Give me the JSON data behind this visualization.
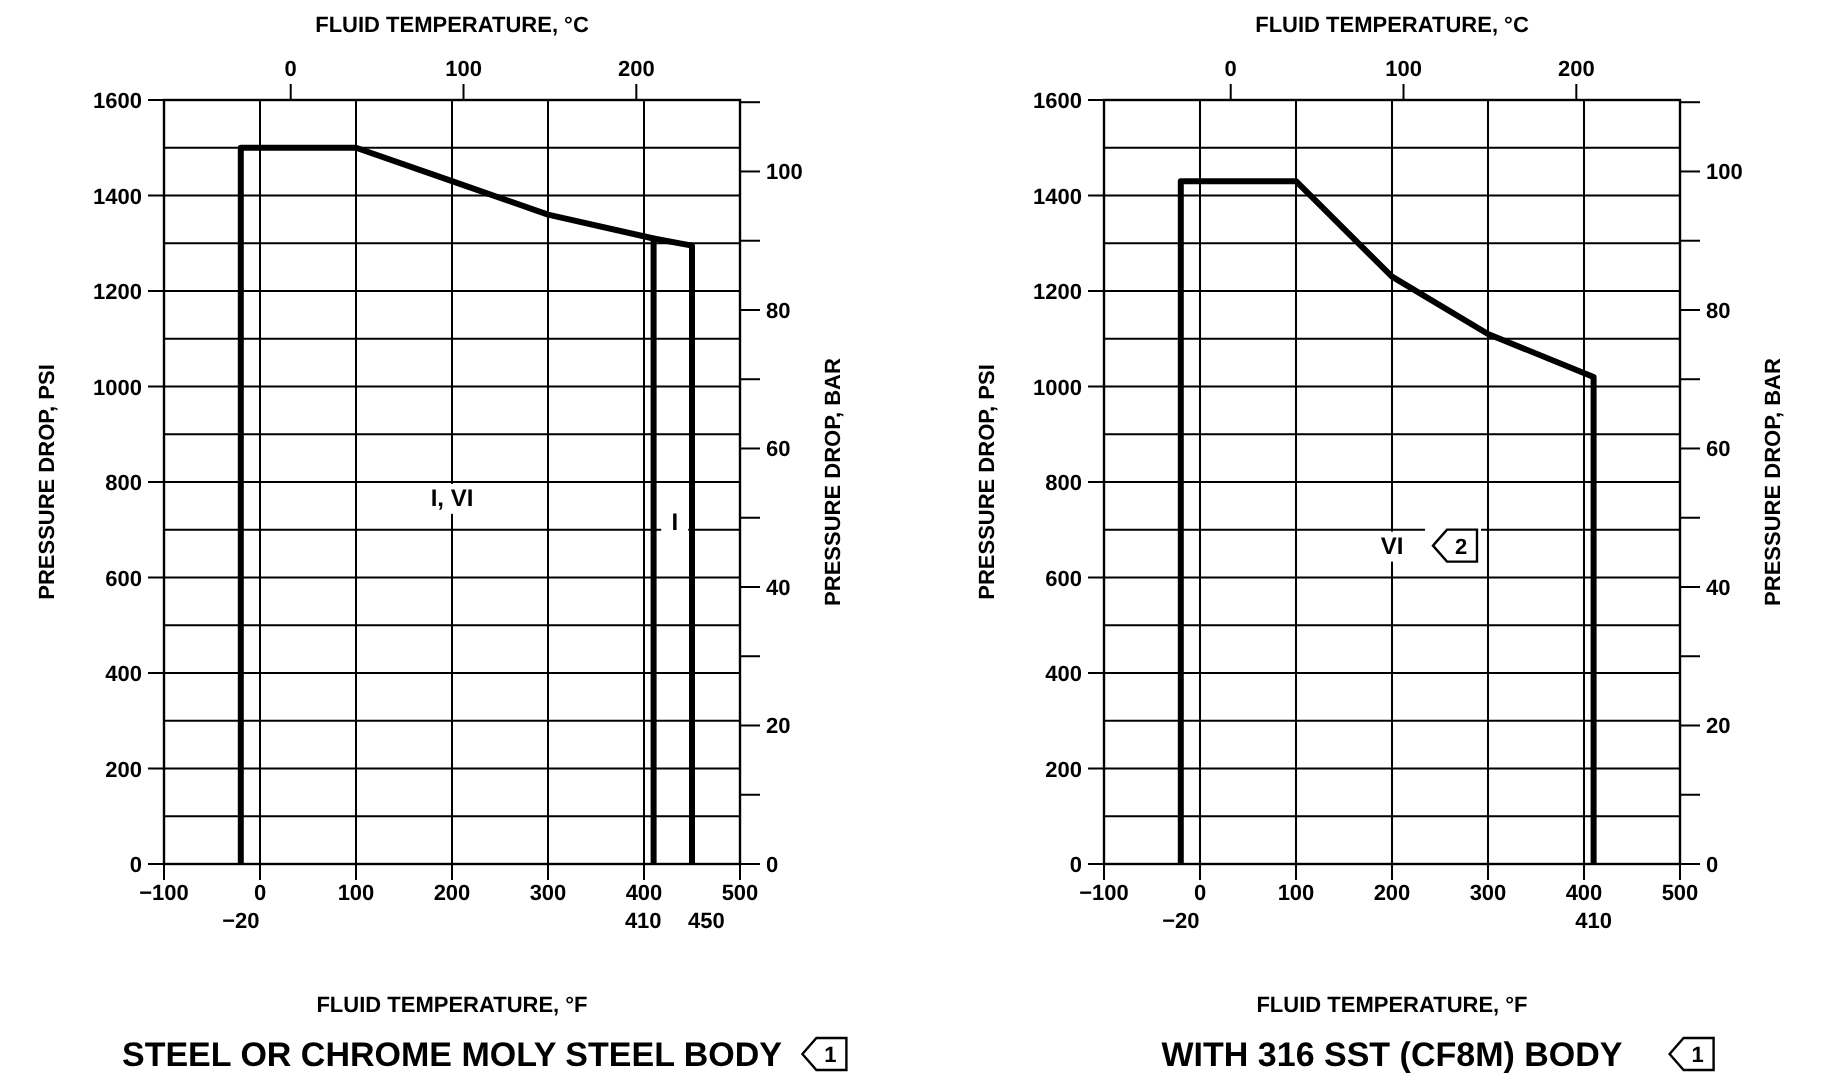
{
  "chart_data": [
    {
      "type": "line",
      "title": "STEEL OR CHROME MOLY STEEL BODY",
      "xlabel": "FLUID TEMPERATURE, °F",
      "x2label": "FLUID TEMPERATURE, °C",
      "ylabel": "PRESSURE DROP, PSI",
      "y2label": "PRESSURE DROP, BAR",
      "series": [
        {
          "color": "#000000",
          "x": [
            -20,
            -20,
            100,
            200,
            300,
            410,
            410
          ],
          "values": [
            0,
            1500,
            1500,
            1430,
            1360,
            1310,
            0
          ]
        },
        {
          "color": "#000000",
          "x": [
            410,
            450,
            450
          ],
          "values": [
            1310,
            1295,
            0
          ]
        }
      ],
      "xlim": [
        -100,
        500
      ],
      "xticks": [
        -100,
        0,
        100,
        200,
        300,
        400,
        500
      ],
      "x2lim": [
        -73.33,
        260
      ],
      "x2ticks": [
        0,
        100,
        200
      ],
      "ylim": [
        0,
        1600
      ],
      "yticks": [
        0,
        {
          "value": 100,
          "label": null
        },
        200,
        {
          "value": 300,
          "label": null
        },
        400,
        {
          "value": 500,
          "label": null
        },
        600,
        {
          "value": 700,
          "label": null
        },
        800,
        {
          "value": 900,
          "label": null
        },
        1000,
        {
          "value": 1100,
          "label": null
        },
        1200,
        {
          "value": 1300,
          "label": null
        },
        1400,
        {
          "value": 1500,
          "label": null
        },
        1600
      ],
      "y2lim": [
        0,
        110.32
      ],
      "y2ticks": [
        0,
        {
          "value": 10,
          "label": null
        },
        20,
        {
          "value": 30,
          "label": null
        },
        40,
        {
          "value": 50,
          "label": null
        },
        60,
        {
          "value": 70,
          "label": null
        },
        80,
        {
          "value": 90,
          "label": null
        },
        100,
        {
          "value": 110,
          "label": null
        }
      ],
      "grid": true,
      "line_style": "solid",
      "annotations": [
        "I, VI",
        "I",
        "1",
        {
          "text": "−20",
          "x": -20,
          "y": 0
        },
        {
          "text": "410",
          "x": 410,
          "y": 0
        },
        {
          "text": "450",
          "x": 450,
          "y": 0
        }
      ]
    },
    {
      "type": "line",
      "title": "WITH 316 SST (CF8M) BODY",
      "xlabel": "FLUID TEMPERATURE, °F",
      "x2label": "FLUID TEMPERATURE, °C",
      "ylabel": "PRESSURE DROP, PSI",
      "y2label": "PRESSURE DROP, BAR",
      "series": [
        {
          "color": "#000000",
          "x": [
            -20,
            -20,
            100,
            200,
            300,
            410,
            410
          ],
          "values": [
            0,
            1430,
            1430,
            1230,
            1110,
            1020,
            0
          ]
        }
      ],
      "xlim": [
        -100,
        500
      ],
      "xticks": [
        -100,
        0,
        100,
        200,
        300,
        400,
        500
      ],
      "x2lim": [
        -73.33,
        260
      ],
      "x2ticks": [
        0,
        100,
        200
      ],
      "ylim": [
        0,
        1600
      ],
      "yticks": [
        0,
        {
          "value": 100,
          "label": null
        },
        200,
        {
          "value": 300,
          "label": null
        },
        400,
        {
          "value": 500,
          "label": null
        },
        600,
        {
          "value": 700,
          "label": null
        },
        800,
        {
          "value": 900,
          "label": null
        },
        1000,
        {
          "value": 1100,
          "label": null
        },
        1200,
        {
          "value": 1300,
          "label": null
        },
        1400,
        {
          "value": 1500,
          "label": null
        },
        1600
      ],
      "y2lim": [
        0,
        110.32
      ],
      "y2ticks": [
        0,
        {
          "value": 10,
          "label": null
        },
        20,
        {
          "value": 30,
          "label": null
        },
        40,
        {
          "value": 50,
          "label": null
        },
        60,
        {
          "value": 70,
          "label": null
        },
        80,
        {
          "value": 90,
          "label": null
        },
        100,
        {
          "value": 110,
          "label": null
        }
      ],
      "grid": true,
      "line_style": "solid",
      "annotations": [
        "VI",
        "2",
        "1",
        {
          "text": "−20",
          "x": -20,
          "y": 0
        },
        {
          "text": "410",
          "x": 410,
          "y": 0
        }
      ]
    }
  ]
}
